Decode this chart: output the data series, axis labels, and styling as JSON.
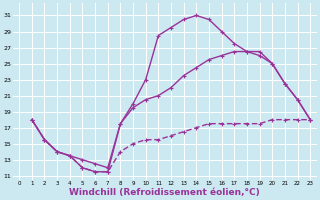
{
  "background_color": "#cce8f0",
  "grid_color": "#ffffff",
  "line_color": "#993399",
  "markersize": 2.5,
  "linewidth": 1.0,
  "xlabel": "Windchill (Refroidissement éolien,°C)",
  "xlabel_fontsize": 6.5,
  "ylabel_ticks": [
    11,
    13,
    15,
    17,
    19,
    21,
    23,
    25,
    27,
    29,
    31
  ],
  "xlim": [
    -0.5,
    23.5
  ],
  "ylim": [
    10.5,
    32.5
  ],
  "figsize": [
    3.2,
    2.0
  ],
  "dpi": 100,
  "curve1_x": [
    1,
    2,
    3,
    4,
    5,
    6,
    7,
    8,
    9,
    10,
    11,
    12,
    13,
    14,
    15,
    16,
    17,
    18,
    19,
    20,
    21,
    22,
    23
  ],
  "curve1_y": [
    18.0,
    15.5,
    14.0,
    13.5,
    12.0,
    11.5,
    11.5,
    17.5,
    20.0,
    23.0,
    28.5,
    29.5,
    30.5,
    31.0,
    30.5,
    29.0,
    27.5,
    26.5,
    26.0,
    25.0,
    22.5,
    20.5,
    18.0
  ],
  "curve2_x": [
    1,
    2,
    3,
    4,
    5,
    6,
    7,
    8,
    9,
    10,
    11,
    12,
    13,
    14,
    15,
    16,
    17,
    18,
    19,
    20,
    21,
    22,
    23
  ],
  "curve2_y": [
    18.0,
    15.5,
    14.0,
    13.5,
    13.0,
    12.5,
    12.0,
    17.5,
    19.5,
    20.5,
    21.0,
    22.0,
    23.5,
    24.5,
    25.5,
    26.0,
    26.5,
    26.5,
    26.5,
    25.0,
    22.5,
    20.5,
    18.0
  ],
  "curve3_x": [
    1,
    2,
    3,
    4,
    5,
    6,
    7,
    8,
    9,
    10,
    11,
    12,
    13,
    14,
    15,
    16,
    17,
    18,
    19,
    20,
    21,
    22,
    23
  ],
  "curve3_y": [
    18.0,
    15.5,
    14.0,
    13.5,
    12.0,
    11.5,
    11.5,
    14.0,
    15.0,
    15.5,
    15.5,
    16.0,
    16.5,
    17.0,
    17.5,
    17.5,
    17.5,
    17.5,
    17.5,
    18.0,
    18.0,
    18.0,
    18.0
  ],
  "xtick_labels": [
    "0",
    "1",
    "2",
    "3",
    "4",
    "5",
    "6",
    "7",
    "8",
    "9",
    "10",
    "11",
    "12",
    "13",
    "14",
    "15",
    "16",
    "17",
    "18",
    "19",
    "20",
    "21",
    "22",
    "23"
  ]
}
